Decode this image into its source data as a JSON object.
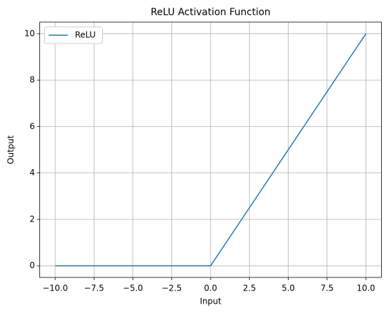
{
  "chart_data": {
    "type": "line",
    "title": "ReLU Activation Function",
    "x_label": "Input",
    "y_label": "Output",
    "x": [
      -10,
      0,
      10
    ],
    "series": [
      {
        "name": "ReLU",
        "color": "#1f77b4",
        "values": [
          0,
          0,
          10
        ]
      }
    ],
    "xlim": [
      -11,
      11
    ],
    "xticks": [
      {
        "value": -10,
        "label": "−10.0"
      },
      {
        "value": -7.5,
        "label": "−7.5"
      },
      {
        "value": -5,
        "label": "−5.0"
      },
      {
        "value": -2.5,
        "label": "−2.5"
      },
      {
        "value": 0,
        "label": "0.0"
      },
      2.5,
      {
        "value": 5,
        "label": "5.0"
      },
      7.5,
      {
        "value": 10,
        "label": "10.0"
      }
    ],
    "ylim": [
      -0.5,
      10.5
    ],
    "yticks": [
      0,
      2,
      4,
      6,
      8,
      10
    ],
    "grid": true,
    "legend": "upper-left"
  }
}
